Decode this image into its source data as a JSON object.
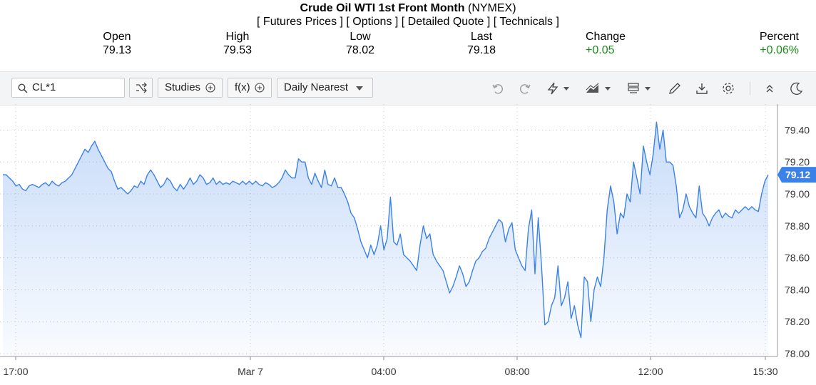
{
  "header": {
    "title_bold": "Crude Oil WTI 1st Front Month",
    "title_suffix": "(NYMEX)",
    "links": [
      "[ Futures Prices ]",
      "[ Options ]",
      "[ Detailed Quote ]",
      "[ Technicals ]"
    ]
  },
  "quote": {
    "open_label": "Open",
    "open_value": "79.13",
    "high_label": "High",
    "high_value": "79.53",
    "low_label": "Low",
    "low_value": "78.02",
    "last_label": "Last",
    "last_value": "79.18",
    "change_label": "Change",
    "change_value": "+0.05",
    "percent_label": "Percent",
    "percent_value": "+0.06%"
  },
  "toolbar": {
    "search_value": "CL*1",
    "studies_label": "Studies",
    "fx_label": "f(x)",
    "period_label": "Daily Nearest"
  },
  "colors": {
    "line": "#3b82e8",
    "positive": "#1a8a1a",
    "badge": "#3b82e8"
  },
  "chart_data": {
    "type": "area",
    "x_ticks": [
      "17:00",
      "Mar 7",
      "04:00",
      "08:00",
      "12:00",
      "15:30"
    ],
    "y_ticks": [
      "79.40",
      "79.20",
      "79.00",
      "78.80",
      "78.60",
      "78.40",
      "78.20",
      "78.00"
    ],
    "ylim": [
      78.0,
      79.5
    ],
    "last_badge": "79.12",
    "grid": true,
    "series": [
      {
        "values": [
          79.12,
          79.12,
          79.1,
          79.08,
          79.05,
          79.06,
          79.03,
          79.02,
          79.05,
          79.06,
          79.05,
          79.04,
          79.06,
          79.07,
          79.05,
          79.08,
          79.06,
          79.05,
          79.07,
          79.08,
          79.1,
          79.12,
          79.16,
          79.2,
          79.24,
          79.28,
          79.26,
          79.3,
          79.33,
          79.28,
          79.24,
          79.2,
          79.16,
          79.14,
          79.08,
          79.03,
          79.04,
          79.02,
          79.0,
          79.02,
          79.05,
          79.04,
          79.08,
          79.06,
          79.12,
          79.15,
          79.12,
          79.08,
          79.04,
          79.06,
          79.1,
          79.08,
          79.04,
          79.02,
          79.06,
          79.03,
          79.06,
          79.1,
          79.06,
          79.08,
          79.12,
          79.1,
          79.06,
          79.07,
          79.1,
          79.06,
          79.08,
          79.06,
          79.07,
          79.06,
          79.08,
          79.07,
          79.06,
          79.08,
          79.06,
          79.08,
          79.06,
          79.08,
          79.06,
          79.05,
          79.07,
          79.06,
          79.04,
          79.05,
          79.07,
          79.1,
          79.15,
          79.12,
          79.1,
          79.1,
          79.22,
          79.2,
          79.2,
          79.1,
          79.06,
          79.13,
          79.08,
          79.04,
          79.15,
          79.06,
          79.05,
          79.1,
          79.04,
          79.04,
          79.0,
          78.95,
          78.88,
          78.85,
          78.78,
          78.7,
          78.65,
          78.6,
          78.68,
          78.62,
          78.68,
          78.8,
          78.65,
          78.72,
          78.98,
          78.7,
          78.68,
          78.75,
          78.62,
          78.6,
          78.58,
          78.55,
          78.52,
          78.68,
          78.8,
          78.72,
          78.75,
          78.62,
          78.58,
          78.55,
          78.52,
          78.45,
          78.38,
          78.42,
          78.48,
          78.55,
          78.5,
          78.42,
          78.45,
          78.52,
          78.58,
          78.6,
          78.64,
          78.66,
          78.72,
          78.76,
          78.8,
          78.84,
          78.82,
          78.7,
          78.78,
          78.82,
          78.65,
          78.6,
          78.55,
          78.52,
          78.78,
          78.9,
          78.5,
          78.85,
          78.55,
          78.18,
          78.2,
          78.3,
          78.35,
          78.55,
          78.3,
          78.35,
          78.45,
          78.22,
          78.3,
          78.18,
          78.1,
          78.48,
          78.45,
          78.2,
          78.4,
          78.48,
          78.42,
          78.6,
          78.9,
          79.05,
          78.95,
          78.75,
          78.88,
          78.85,
          79.0,
          78.95,
          79.2,
          79.1,
          79.0,
          79.3,
          79.2,
          79.12,
          79.25,
          79.45,
          79.28,
          79.4,
          79.2,
          79.2,
          79.18,
          79.05,
          78.85,
          78.9,
          79.0,
          78.92,
          78.88,
          78.85,
          79.05,
          78.88,
          78.85,
          78.8,
          78.85,
          78.88,
          78.9,
          78.85,
          78.88,
          78.86,
          78.85,
          78.9,
          78.88,
          78.9,
          78.92,
          78.9,
          78.92,
          78.9,
          78.89,
          79.0,
          79.08,
          79.12
        ]
      }
    ]
  }
}
